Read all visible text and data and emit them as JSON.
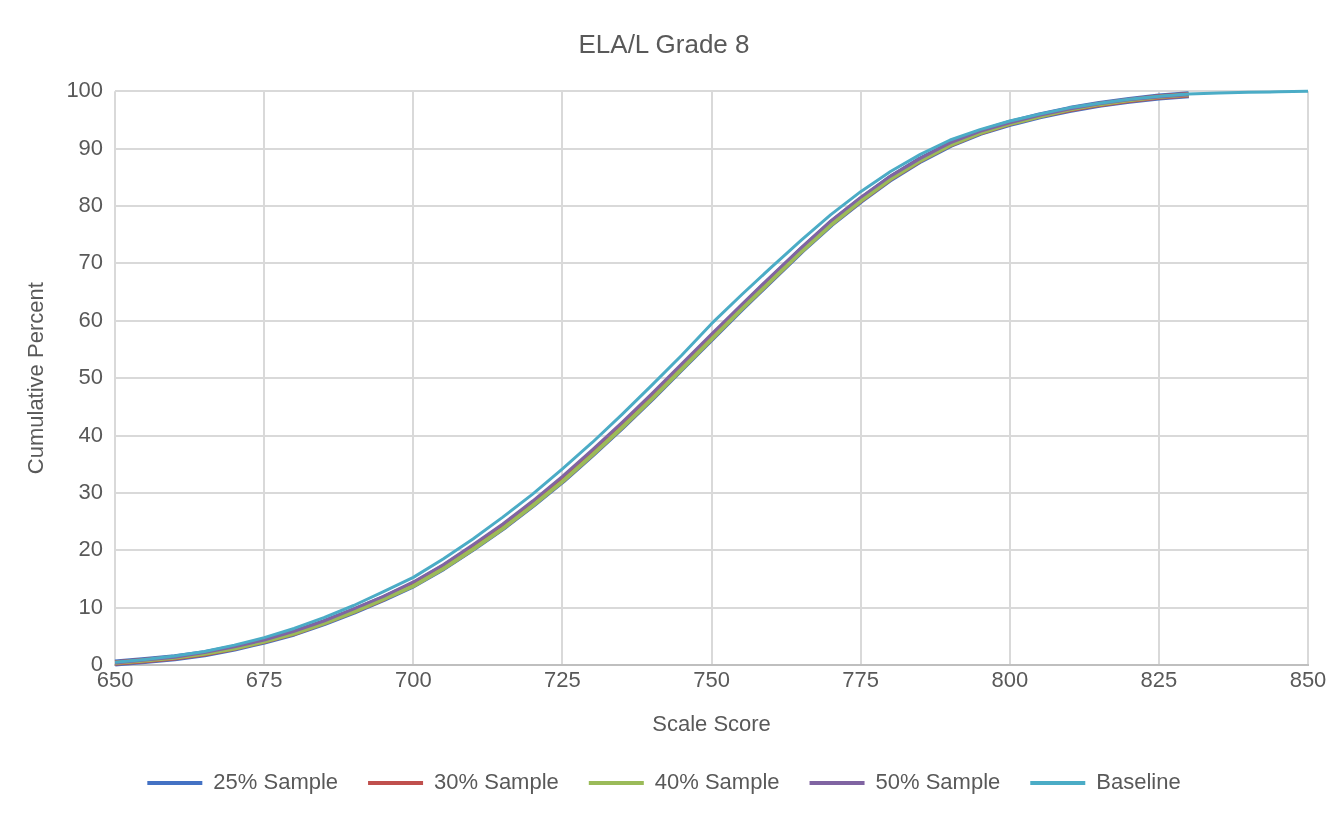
{
  "chart_data": {
    "type": "line",
    "title": "ELA/L Grade 8",
    "xlabel": "Scale Score",
    "ylabel": "Cumulative Percent",
    "x": [
      650,
      655,
      660,
      665,
      670,
      675,
      680,
      685,
      690,
      695,
      700,
      705,
      710,
      715,
      720,
      725,
      730,
      735,
      740,
      745,
      750,
      755,
      760,
      765,
      770,
      775,
      780,
      785,
      790,
      795,
      800,
      805,
      810,
      815,
      820,
      825,
      830,
      835,
      840,
      845,
      850
    ],
    "xlim": [
      650,
      850
    ],
    "xticks": [
      650,
      675,
      700,
      725,
      750,
      775,
      800,
      825,
      850
    ],
    "ylim": [
      0,
      100
    ],
    "yticks": [
      0,
      10,
      20,
      30,
      40,
      50,
      60,
      70,
      80,
      90,
      100
    ],
    "grid": true,
    "legend": "bottom",
    "marker": "none",
    "line_style": "solid",
    "series": [
      {
        "name": "25% Sample",
        "color": "#4472c4",
        "values": [
          0.4,
          0.8,
          1.3,
          2.0,
          3.0,
          4.2,
          5.6,
          7.4,
          9.4,
          11.6,
          14.0,
          17.0,
          20.4,
          24.0,
          28.0,
          32.2,
          36.8,
          41.6,
          46.6,
          51.8,
          57.0,
          62.2,
          67.2,
          72.2,
          76.9,
          81.0,
          84.8,
          88.0,
          90.7,
          92.8,
          94.4,
          95.7,
          96.8,
          97.7,
          98.4,
          99.0,
          99.4,
          null,
          null,
          null,
          null
        ]
      },
      {
        "name": "30% Sample",
        "color": "#c0504d",
        "values": [
          0.4,
          0.8,
          1.3,
          2.0,
          3.0,
          4.2,
          5.6,
          7.4,
          9.4,
          11.6,
          14.0,
          17.0,
          20.4,
          24.0,
          28.0,
          32.2,
          36.8,
          41.6,
          46.6,
          51.8,
          57.0,
          62.2,
          67.2,
          72.2,
          76.9,
          81.0,
          84.8,
          88.0,
          90.7,
          92.8,
          94.4,
          95.7,
          96.8,
          97.7,
          98.4,
          99.0,
          99.4,
          null,
          null,
          null,
          null
        ]
      },
      {
        "name": "40% Sample",
        "color": "#9bbb59",
        "values": [
          0.4,
          0.8,
          1.3,
          2.0,
          2.9,
          4.1,
          5.5,
          7.3,
          9.3,
          11.5,
          13.8,
          16.8,
          20.2,
          23.8,
          27.8,
          32.0,
          36.6,
          41.4,
          46.4,
          51.6,
          56.8,
          62.0,
          67.0,
          72.0,
          76.7,
          80.9,
          84.7,
          87.9,
          90.6,
          92.7,
          94.3,
          95.6,
          96.8,
          97.7,
          98.4,
          99.0,
          99.4,
          null,
          null,
          null,
          null
        ]
      },
      {
        "name": "50% Sample",
        "color": "#8064a2",
        "values": [
          0.4,
          0.9,
          1.4,
          2.2,
          3.2,
          4.4,
          5.9,
          7.7,
          9.8,
          12.0,
          14.5,
          17.5,
          21.0,
          24.6,
          28.6,
          32.9,
          37.5,
          42.3,
          47.3,
          52.5,
          57.7,
          62.8,
          67.8,
          72.7,
          77.4,
          81.5,
          85.2,
          88.3,
          91.0,
          93.0,
          94.5,
          95.8,
          96.9,
          97.8,
          98.5,
          99.0,
          99.4,
          null,
          null,
          null,
          null
        ]
      },
      {
        "name": "Baseline",
        "color": "#4bacc6",
        "values": [
          0.5,
          1.0,
          1.6,
          2.4,
          3.5,
          4.8,
          6.4,
          8.3,
          10.4,
          12.8,
          15.3,
          18.5,
          22.0,
          25.8,
          29.8,
          34.2,
          38.8,
          43.7,
          48.8,
          54.0,
          59.5,
          64.5,
          69.3,
          74.0,
          78.5,
          82.5,
          86.0,
          89.0,
          91.5,
          93.3,
          94.8,
          96.0,
          97.1,
          97.9,
          98.6,
          99.1,
          99.5,
          99.7,
          99.8,
          99.9,
          100
        ]
      }
    ]
  }
}
